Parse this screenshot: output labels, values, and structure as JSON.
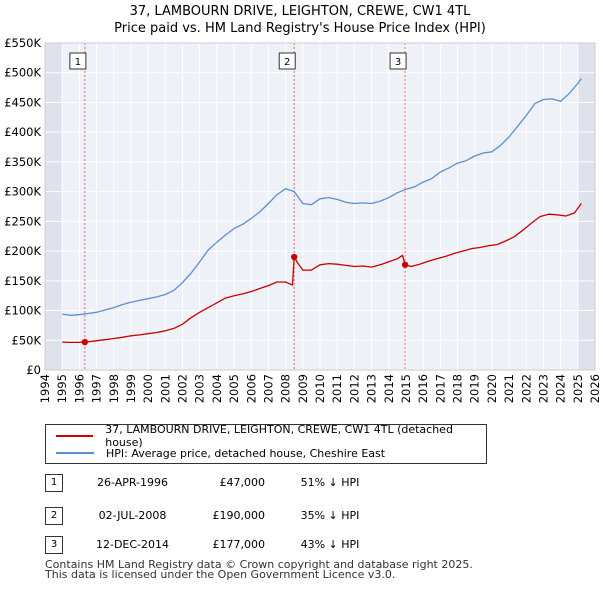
{
  "chart_data": {
    "type": "line",
    "title": "37, LAMBOURN DRIVE, LEIGHTON, CREWE, CW1 4TL",
    "subtitle": "Price paid vs. HM Land Registry's House Price Index (HPI)",
    "xlabel": "",
    "ylabel": "",
    "xlim": [
      1994,
      2026
    ],
    "ylim": [
      0,
      550000
    ],
    "x_ticks": [
      "1994",
      "1995",
      "1996",
      "1997",
      "1998",
      "1999",
      "2000",
      "2001",
      "2002",
      "2003",
      "2004",
      "2005",
      "2006",
      "2007",
      "2008",
      "2009",
      "2010",
      "2011",
      "2012",
      "2013",
      "2014",
      "2015",
      "2016",
      "2017",
      "2018",
      "2019",
      "2020",
      "2021",
      "2022",
      "2023",
      "2024",
      "2025",
      "2026"
    ],
    "y_ticks": [
      {
        "value": 0,
        "label": "£0"
      },
      {
        "value": 50000,
        "label": "£50K"
      },
      {
        "value": 100000,
        "label": "£100K"
      },
      {
        "value": 150000,
        "label": "£150K"
      },
      {
        "value": 200000,
        "label": "£200K"
      },
      {
        "value": 250000,
        "label": "£250K"
      },
      {
        "value": 300000,
        "label": "£300K"
      },
      {
        "value": 350000,
        "label": "£350K"
      },
      {
        "value": 400000,
        "label": "£400K"
      },
      {
        "value": 450000,
        "label": "£450K"
      },
      {
        "value": 500000,
        "label": "£500K"
      },
      {
        "value": 550000,
        "label": "£550K"
      }
    ],
    "series": [
      {
        "name": "37, LAMBOURN DRIVE, LEIGHTON, CREWE, CW1 4TL (detached house)",
        "color": "#cc0000",
        "points": [
          [
            1995.0,
            47000
          ],
          [
            1995.5,
            46500
          ],
          [
            1996.0,
            46500
          ],
          [
            1996.32,
            47000
          ],
          [
            1996.8,
            48500
          ],
          [
            1997.5,
            51000
          ],
          [
            1998.0,
            53000
          ],
          [
            1998.5,
            55000
          ],
          [
            1999.0,
            57500
          ],
          [
            1999.5,
            59000
          ],
          [
            2000.0,
            61000
          ],
          [
            2000.5,
            63000
          ],
          [
            2001.0,
            66000
          ],
          [
            2001.5,
            70000
          ],
          [
            2002.0,
            77000
          ],
          [
            2002.5,
            88000
          ],
          [
            2003.0,
            97000
          ],
          [
            2003.5,
            105000
          ],
          [
            2004.0,
            113000
          ],
          [
            2004.5,
            121000
          ],
          [
            2005.0,
            125000
          ],
          [
            2005.5,
            128000
          ],
          [
            2006.0,
            132000
          ],
          [
            2006.5,
            137000
          ],
          [
            2007.0,
            142000
          ],
          [
            2007.5,
            148000
          ],
          [
            2008.0,
            148000
          ],
          [
            2008.4,
            143000
          ],
          [
            2008.5,
            190000
          ],
          [
            2008.7,
            180000
          ],
          [
            2009.0,
            168000
          ],
          [
            2009.5,
            168000
          ],
          [
            2010.0,
            177000
          ],
          [
            2010.5,
            179000
          ],
          [
            2011.0,
            178000
          ],
          [
            2011.5,
            176000
          ],
          [
            2012.0,
            174000
          ],
          [
            2012.5,
            175000
          ],
          [
            2013.0,
            173000
          ],
          [
            2013.5,
            177000
          ],
          [
            2014.0,
            182000
          ],
          [
            2014.5,
            187000
          ],
          [
            2014.8,
            193000
          ],
          [
            2014.95,
            177000
          ],
          [
            2015.3,
            174000
          ],
          [
            2015.8,
            178000
          ],
          [
            2016.3,
            183000
          ],
          [
            2016.8,
            187000
          ],
          [
            2017.3,
            191000
          ],
          [
            2017.8,
            196000
          ],
          [
            2018.3,
            200000
          ],
          [
            2018.8,
            204000
          ],
          [
            2019.3,
            206000
          ],
          [
            2019.8,
            209000
          ],
          [
            2020.3,
            211000
          ],
          [
            2020.8,
            217000
          ],
          [
            2021.3,
            224000
          ],
          [
            2021.8,
            235000
          ],
          [
            2022.3,
            247000
          ],
          [
            2022.8,
            258000
          ],
          [
            2023.3,
            262000
          ],
          [
            2023.8,
            261000
          ],
          [
            2024.3,
            259000
          ],
          [
            2024.8,
            264000
          ],
          [
            2025.2,
            280000
          ]
        ]
      },
      {
        "name": "HPI: Average price, detached house, Cheshire East",
        "color": "#5b8fd4",
        "points": [
          [
            1995.0,
            94000
          ],
          [
            1995.5,
            92000
          ],
          [
            1996.0,
            93000
          ],
          [
            1996.5,
            95000
          ],
          [
            1997.0,
            97000
          ],
          [
            1997.5,
            101000
          ],
          [
            1998.0,
            105000
          ],
          [
            1998.5,
            110000
          ],
          [
            1999.0,
            114000
          ],
          [
            1999.5,
            117000
          ],
          [
            2000.0,
            120000
          ],
          [
            2000.5,
            123000
          ],
          [
            2001.0,
            127000
          ],
          [
            2001.5,
            134000
          ],
          [
            2002.0,
            147000
          ],
          [
            2002.5,
            163000
          ],
          [
            2003.0,
            182000
          ],
          [
            2003.5,
            202000
          ],
          [
            2004.0,
            215000
          ],
          [
            2004.5,
            227000
          ],
          [
            2005.0,
            238000
          ],
          [
            2005.5,
            245000
          ],
          [
            2006.0,
            255000
          ],
          [
            2006.5,
            266000
          ],
          [
            2007.0,
            280000
          ],
          [
            2007.5,
            295000
          ],
          [
            2008.0,
            305000
          ],
          [
            2008.5,
            300000
          ],
          [
            2009.0,
            280000
          ],
          [
            2009.5,
            278000
          ],
          [
            2010.0,
            288000
          ],
          [
            2010.5,
            290000
          ],
          [
            2011.0,
            287000
          ],
          [
            2011.5,
            282000
          ],
          [
            2012.0,
            280000
          ],
          [
            2012.5,
            281000
          ],
          [
            2013.0,
            280000
          ],
          [
            2013.5,
            284000
          ],
          [
            2014.0,
            290000
          ],
          [
            2014.5,
            298000
          ],
          [
            2015.0,
            304000
          ],
          [
            2015.5,
            308000
          ],
          [
            2016.0,
            316000
          ],
          [
            2016.5,
            322000
          ],
          [
            2017.0,
            333000
          ],
          [
            2017.5,
            340000
          ],
          [
            2018.0,
            348000
          ],
          [
            2018.5,
            352000
          ],
          [
            2019.0,
            360000
          ],
          [
            2019.5,
            365000
          ],
          [
            2020.0,
            367000
          ],
          [
            2020.5,
            378000
          ],
          [
            2021.0,
            392000
          ],
          [
            2021.5,
            410000
          ],
          [
            2022.0,
            428000
          ],
          [
            2022.5,
            448000
          ],
          [
            2023.0,
            455000
          ],
          [
            2023.5,
            456000
          ],
          [
            2024.0,
            452000
          ],
          [
            2024.5,
            465000
          ],
          [
            2025.0,
            482000
          ],
          [
            2025.2,
            490000
          ]
        ]
      }
    ],
    "sales": [
      {
        "id": "1",
        "x": 1996.32,
        "price": 47000
      },
      {
        "id": "2",
        "x": 2008.5,
        "price": 190000
      },
      {
        "id": "3",
        "x": 2014.95,
        "price": 177000
      }
    ],
    "shaded_years": [
      [
        1994,
        1995
      ],
      [
        2025,
        2026
      ]
    ]
  },
  "legend": {
    "property_label": "37, LAMBOURN DRIVE, LEIGHTON, CREWE, CW1 4TL (detached house)",
    "hpi_label": "HPI: Average price, detached house, Cheshire East",
    "property_color": "#cc0000",
    "hpi_color": "#5b8fd4"
  },
  "transactions": [
    {
      "num": "1",
      "date": "26-APR-1996",
      "price": "£47,000",
      "hpi": "51% ↓ HPI"
    },
    {
      "num": "2",
      "date": "02-JUL-2008",
      "price": "£190,000",
      "hpi": "35% ↓ HPI"
    },
    {
      "num": "3",
      "date": "12-DEC-2014",
      "price": "£177,000",
      "hpi": "43% ↓ HPI"
    }
  ],
  "footer": {
    "line1": "Contains HM Land Registry data © Crown copyright and database right 2025.",
    "line2": "This data is licensed under the Open Government Licence v3.0."
  }
}
